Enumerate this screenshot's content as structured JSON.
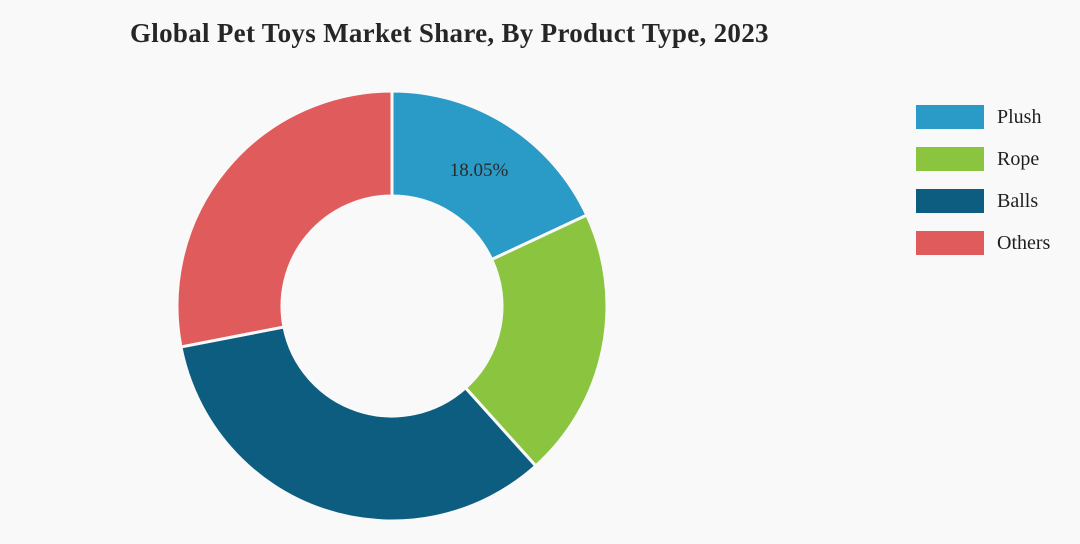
{
  "title": "Global Pet Toys Market Share, By Product Type, 2023",
  "chart_data": {
    "type": "pie",
    "donut": true,
    "title": "Global Pet Toys Market Share, By Product Type, 2023",
    "categories": [
      "Plush",
      "Rope",
      "Balls",
      "Others"
    ],
    "values": [
      18.05,
      20.3,
      33.6,
      28.05
    ],
    "colors": [
      "#2a9ac6",
      "#8bc540",
      "#0d5d80",
      "#e05c5c"
    ],
    "slice_labels": [
      "18.05%",
      "",
      "",
      ""
    ],
    "start_angle_deg": 0,
    "direction": "clockwise",
    "legend_position": "right",
    "background": "#f9f9f9",
    "inner_radius_ratio": 0.51
  },
  "legend": {
    "items": [
      {
        "label": "Plush"
      },
      {
        "label": "Rope"
      },
      {
        "label": "Balls"
      },
      {
        "label": "Others"
      }
    ]
  }
}
